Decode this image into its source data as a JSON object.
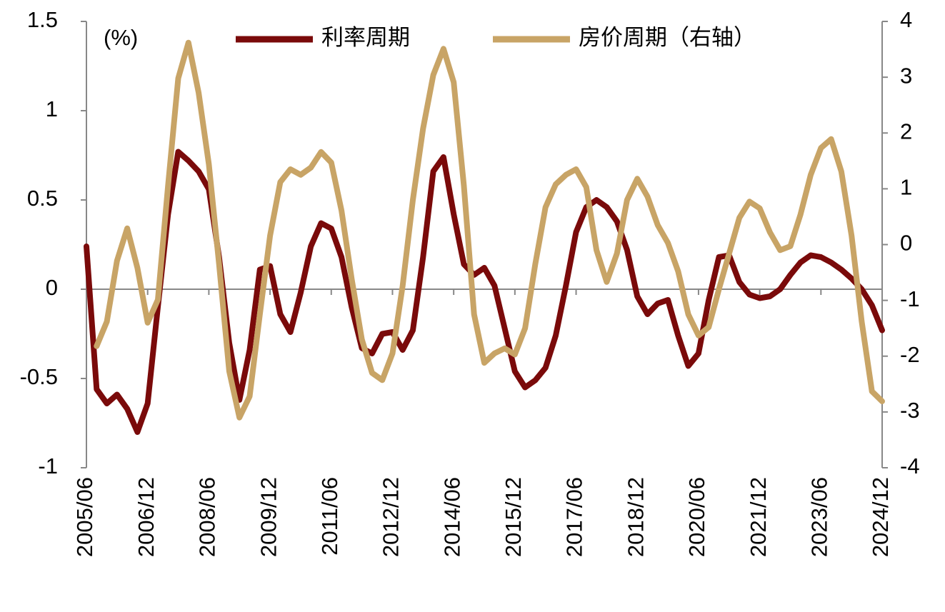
{
  "chart_data": {
    "type": "line",
    "y_label": "(%)",
    "categories": [
      "2005/06",
      null,
      null,
      null,
      null,
      null,
      "2006/12",
      null,
      null,
      null,
      null,
      null,
      "2008/06",
      null,
      null,
      null,
      null,
      null,
      "2009/12",
      null,
      null,
      null,
      null,
      null,
      "2011/06",
      null,
      null,
      null,
      null,
      null,
      "2012/12",
      null,
      null,
      null,
      null,
      null,
      "2014/06",
      null,
      null,
      null,
      null,
      null,
      "2015/12",
      null,
      null,
      null,
      null,
      null,
      "2017/06",
      null,
      null,
      null,
      null,
      null,
      "2018/12",
      null,
      null,
      null,
      null,
      null,
      "2020/06",
      null,
      null,
      null,
      null,
      null,
      "2021/12",
      null,
      null,
      null,
      null,
      null,
      "2023/06",
      null,
      null,
      null,
      null,
      null,
      "2024/12"
    ],
    "series": [
      {
        "name": "利率周期",
        "color": "#7a0a0a",
        "axis": "y",
        "values": [
          0.24,
          -0.56,
          -0.64,
          -0.59,
          -0.67,
          -0.8,
          -0.64,
          -0.1,
          0.42,
          0.77,
          0.72,
          0.66,
          0.56,
          0.18,
          -0.3,
          -0.62,
          -0.34,
          0.11,
          0.13,
          -0.14,
          -0.24,
          -0.02,
          0.24,
          0.37,
          0.34,
          0.18,
          -0.1,
          -0.33,
          -0.36,
          -0.25,
          -0.24,
          -0.34,
          -0.23,
          0.18,
          0.66,
          0.74,
          0.42,
          0.14,
          0.08,
          0.12,
          0.02,
          -0.22,
          -0.46,
          -0.55,
          -0.51,
          -0.44,
          -0.26,
          0.02,
          0.32,
          0.46,
          0.5,
          0.46,
          0.38,
          0.22,
          -0.04,
          -0.14,
          -0.08,
          -0.06,
          -0.26,
          -0.43,
          -0.36,
          -0.06,
          0.18,
          0.19,
          0.04,
          -0.03,
          -0.05,
          -0.04,
          0,
          0.08,
          0.15,
          0.19,
          0.18,
          0.15,
          0.11,
          0.06,
          0,
          -0.09,
          -0.23
        ]
      },
      {
        "name": "房价周期（右轴）",
        "color": "#c8a466",
        "axis": "y2",
        "values": [
          null,
          -1.82,
          -1.38,
          -0.29,
          0.29,
          -0.42,
          -1.4,
          -0.99,
          1.06,
          2.98,
          3.62,
          2.72,
          1.44,
          -0.35,
          -2.27,
          -3.1,
          -2.72,
          -1.25,
          0.16,
          1.12,
          1.35,
          1.25,
          1.38,
          1.66,
          1.47,
          0.61,
          -0.61,
          -1.7,
          -2.3,
          -2.43,
          -1.95,
          -0.74,
          0.8,
          2.08,
          3.04,
          3.51,
          2.91,
          1.06,
          -1.25,
          -2.12,
          -1.95,
          -1.86,
          -1.97,
          -1.5,
          -0.35,
          0.67,
          1.08,
          1.25,
          1.35,
          1.03,
          -0.1,
          -0.67,
          -0.16,
          0.8,
          1.18,
          0.86,
          0.35,
          0.03,
          -0.48,
          -1.25,
          -1.63,
          -1.48,
          -0.8,
          -0.16,
          0.48,
          0.77,
          0.65,
          0.22,
          -0.1,
          -0.03,
          0.54,
          1.25,
          1.73,
          1.89,
          1.31,
          0.16,
          -1.38,
          -2.63,
          -2.81
        ]
      }
    ],
    "ylim": [
      -1,
      1.5
    ],
    "yticks": [
      -1,
      -0.5,
      0,
      0.5,
      1,
      1.5
    ],
    "y2lim": [
      -4,
      4
    ],
    "y2ticks": [
      -4,
      -3,
      -2,
      -1,
      0,
      1,
      2,
      3,
      4
    ],
    "legend": "top"
  }
}
